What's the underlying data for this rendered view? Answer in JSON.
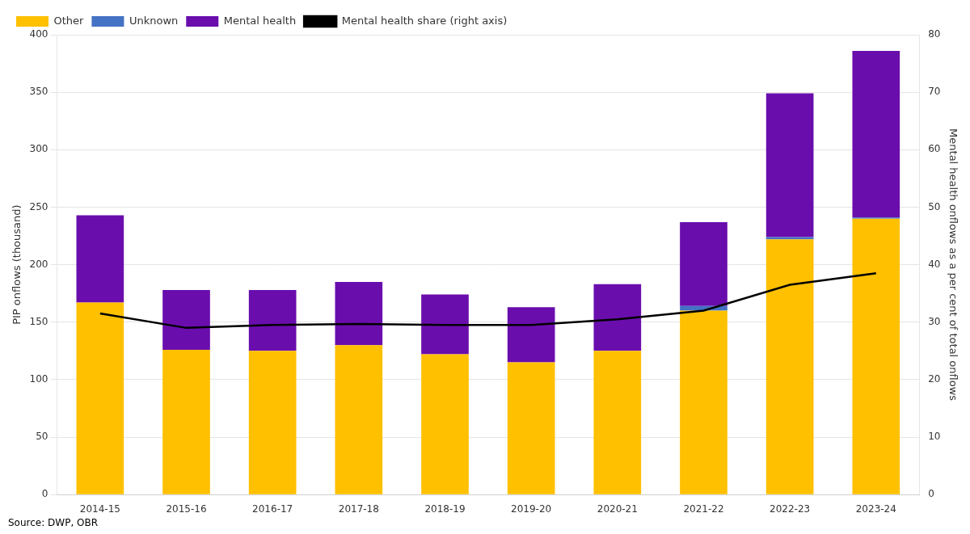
{
  "chart_data": {
    "type": "bar",
    "categories": [
      "2014-15",
      "2015-16",
      "2016-17",
      "2017-18",
      "2018-19",
      "2019-20",
      "2020-21",
      "2021-22",
      "2022-23",
      "2023-24"
    ],
    "series": [
      {
        "name": "Other",
        "color": "#FFC000",
        "values": [
          167,
          126,
          125,
          130,
          122,
          115,
          125,
          160,
          222,
          240
        ]
      },
      {
        "name": "Unknown",
        "color": "#4472C4",
        "values": [
          0,
          0,
          0,
          0,
          0,
          0,
          0,
          4,
          2,
          1
        ]
      },
      {
        "name": "Mental health",
        "color": "#6A0DAD",
        "values": [
          76,
          52,
          53,
          55,
          52,
          48,
          58,
          73,
          125,
          145
        ]
      },
      {
        "name": "Mental health share (right axis)",
        "type": "line",
        "color": "#000000",
        "axis": "y2",
        "values": [
          31.5,
          29.0,
          29.5,
          29.7,
          29.5,
          29.5,
          30.5,
          32.0,
          36.5,
          38.5
        ]
      }
    ],
    "stacked": true,
    "ylabel": "PIP onflows (thousand)",
    "y2label": "Mental health onflows as a per cent of total onflows",
    "ylim": [
      0,
      400
    ],
    "yticks": [
      0,
      50,
      100,
      150,
      200,
      250,
      300,
      350,
      400
    ],
    "y2lim": [
      0,
      80
    ],
    "y2ticks": [
      0,
      10,
      20,
      30,
      40,
      50,
      60,
      70,
      80
    ],
    "grid": true,
    "legend": "upper left",
    "annotations": [
      "Source: DWP, OBR"
    ]
  }
}
